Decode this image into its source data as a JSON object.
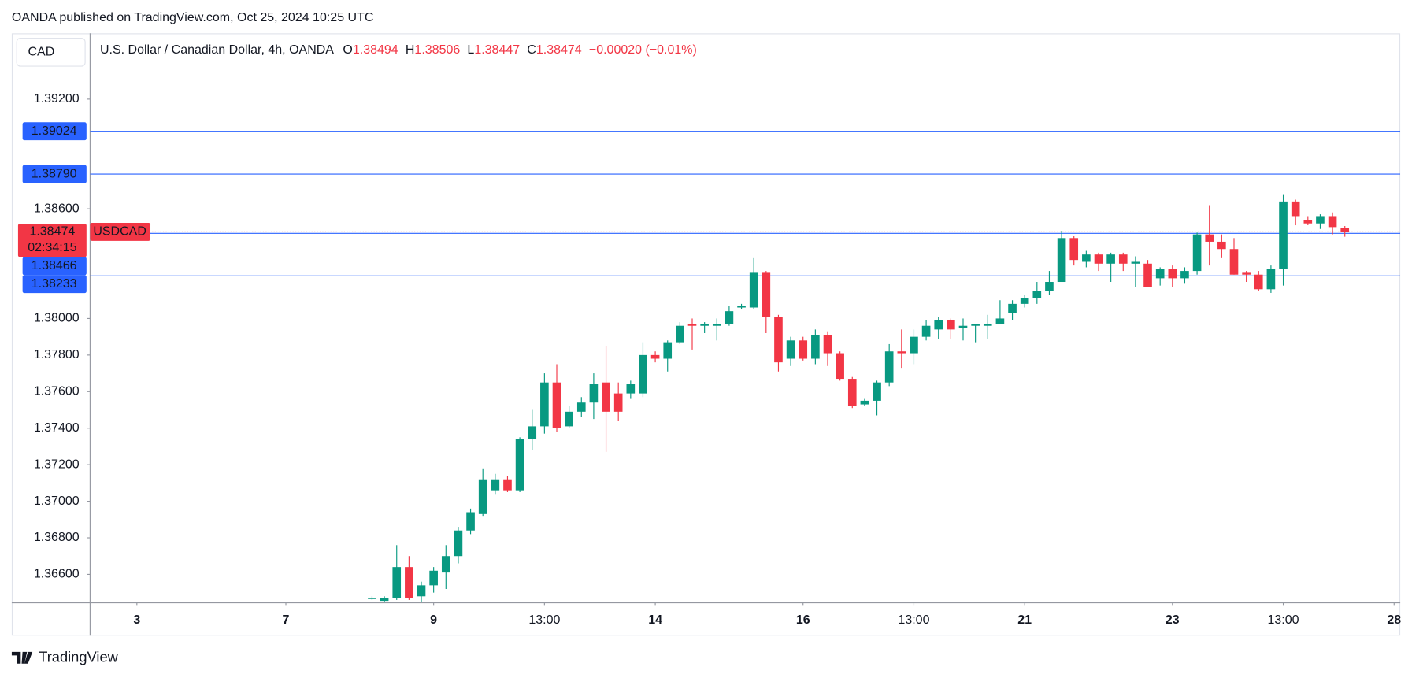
{
  "header": {
    "publisher": "OANDA published on TradingView.com, Oct 25, 2024 10:25 UTC",
    "currency": "CAD",
    "brand": "TradingView"
  },
  "chart_data": {
    "type": "candlestick",
    "title": "U.S. Dollar / Canadian Dollar, 4h, OANDA",
    "symbol": "USDCAD",
    "countdown": "02:34:15",
    "ohlc_prefixes": [
      "O",
      "H",
      "L",
      "C"
    ],
    "change": "−0.00020 (−0.01%)",
    "up_color": "#089981",
    "down_color": "#f23645",
    "open": [
      1.3647,
      1.36455,
      1.3647,
      1.3664,
      1.3648,
      1.3654,
      1.3661,
      1.367,
      1.3684,
      1.3693,
      1.3706,
      1.3712,
      1.3706,
      1.3734,
      1.3741,
      1.3765,
      1.3741,
      1.3749,
      1.3754,
      1.3765,
      1.3759,
      1.3759,
      1.3759,
      1.378,
      1.3778,
      1.3787,
      1.3797,
      1.3796,
      1.3796,
      1.3797,
      1.3806,
      1.3806,
      1.3825,
      1.3801,
      1.3778,
      1.3788,
      1.3778,
      1.3791,
      1.3781,
      1.3767,
      1.3753,
      1.3755,
      1.3765,
      1.3782,
      1.3781,
      1.379,
      1.3794,
      1.3799,
      1.3795,
      1.3796,
      1.3796,
      1.3797,
      1.3803,
      1.3808,
      1.3811,
      1.3815,
      1.382,
      1.3844,
      1.3831,
      1.3835,
      1.383,
      1.3835,
      1.383,
      1.383,
      1.3822,
      1.3827,
      1.3822,
      1.3826,
      1.3846,
      1.3842,
      1.3838,
      1.3825,
      1.3824,
      1.3816,
      1.3827,
      1.3864,
      1.3854,
      1.3852,
      1.3856,
      1.38494
    ],
    "high": [
      1.3648,
      1.3648,
      1.3676,
      1.367,
      1.3656,
      1.3664,
      1.3676,
      1.3686,
      1.3696,
      1.3718,
      1.3715,
      1.3714,
      1.3735,
      1.375,
      1.377,
      1.3775,
      1.3752,
      1.3757,
      1.377,
      1.3785,
      1.3765,
      1.3766,
      1.3787,
      1.3782,
      1.3788,
      1.3798,
      1.38,
      1.3798,
      1.38,
      1.3807,
      1.3808,
      1.3833,
      1.3826,
      1.3802,
      1.379,
      1.379,
      1.3794,
      1.3793,
      1.3782,
      1.3768,
      1.3756,
      1.3766,
      1.3786,
      1.3794,
      1.3794,
      1.3799,
      1.3801,
      1.38,
      1.38,
      1.3797,
      1.3802,
      1.381,
      1.381,
      1.3813,
      1.382,
      1.3826,
      1.3848,
      1.3845,
      1.3837,
      1.3836,
      1.3836,
      1.3836,
      1.3834,
      1.3832,
      1.3828,
      1.3829,
      1.3828,
      1.3847,
      1.3862,
      1.3846,
      1.3844,
      1.3826,
      1.3826,
      1.3829,
      1.3868,
      1.3865,
      1.3856,
      1.3857,
      1.3858,
      1.38506
    ],
    "low": [
      1.3646,
      1.3645,
      1.3646,
      1.3646,
      1.3645,
      1.365,
      1.3652,
      1.3666,
      1.3682,
      1.3692,
      1.3704,
      1.3705,
      1.3705,
      1.3728,
      1.3737,
      1.3738,
      1.374,
      1.3746,
      1.3745,
      1.3727,
      1.3744,
      1.3756,
      1.3757,
      1.3776,
      1.3771,
      1.3786,
      1.3783,
      1.3792,
      1.3788,
      1.3796,
      1.3805,
      1.3805,
      1.3792,
      1.3771,
      1.3774,
      1.3777,
      1.3775,
      1.3774,
      1.3766,
      1.3751,
      1.3752,
      1.3747,
      1.3763,
      1.3773,
      1.3775,
      1.3788,
      1.3789,
      1.3789,
      1.3788,
      1.3787,
      1.3789,
      1.3797,
      1.3799,
      1.3806,
      1.3808,
      1.3813,
      1.382,
      1.3829,
      1.3828,
      1.3826,
      1.382,
      1.3826,
      1.3817,
      1.3817,
      1.3818,
      1.3817,
      1.3819,
      1.3824,
      1.3829,
      1.3833,
      1.3824,
      1.382,
      1.3815,
      1.3814,
      1.3818,
      1.3851,
      1.3851,
      1.3849,
      1.3846,
      1.38447
    ],
    "close": [
      1.3647,
      1.3647,
      1.3664,
      1.3647,
      1.3654,
      1.3662,
      1.367,
      1.3684,
      1.3694,
      1.3712,
      1.3712,
      1.3706,
      1.3734,
      1.3741,
      1.3765,
      1.374,
      1.3749,
      1.3754,
      1.3764,
      1.3749,
      1.3749,
      1.3764,
      1.378,
      1.3778,
      1.3787,
      1.3796,
      1.3796,
      1.3797,
      1.3797,
      1.3804,
      1.3807,
      1.3825,
      1.3801,
      1.3776,
      1.3788,
      1.3778,
      1.3791,
      1.3781,
      1.3767,
      1.3752,
      1.3755,
      1.3765,
      1.3782,
      1.3781,
      1.379,
      1.3796,
      1.3799,
      1.3794,
      1.3796,
      1.3797,
      1.3797,
      1.38,
      1.3808,
      1.3811,
      1.3815,
      1.382,
      1.3844,
      1.3832,
      1.3835,
      1.383,
      1.3835,
      1.383,
      1.3831,
      1.3817,
      1.3827,
      1.3822,
      1.3826,
      1.3846,
      1.3842,
      1.3838,
      1.3824,
      1.3824,
      1.3816,
      1.3827,
      1.3864,
      1.3856,
      1.3852,
      1.3856,
      1.385,
      1.38474
    ],
    "levels": [
      {
        "value": 1.39024,
        "label": "1.39024",
        "color": "#2962ff"
      },
      {
        "value": 1.3879,
        "label": "1.38790",
        "color": "#2962ff"
      },
      {
        "value": 1.38466,
        "label": "1.38466",
        "color": "#2962ff"
      },
      {
        "value": 1.38233,
        "label": "1.38233",
        "color": "#2962ff"
      }
    ],
    "ylim": [
      1.36447,
      1.3956
    ],
    "yticks": [
      {
        "value": 1.392,
        "label": "1.39200"
      },
      {
        "value": 1.386,
        "label": "1.38600"
      },
      {
        "value": 1.38,
        "label": "1.38000"
      },
      {
        "value": 1.378,
        "label": "1.37800"
      },
      {
        "value": 1.376,
        "label": "1.37600"
      },
      {
        "value": 1.374,
        "label": "1.37400"
      },
      {
        "value": 1.372,
        "label": "1.37200"
      },
      {
        "value": 1.37,
        "label": "1.37000"
      },
      {
        "value": 1.368,
        "label": "1.36800"
      },
      {
        "value": 1.366,
        "label": "1.36600"
      }
    ],
    "xlim": [
      -22.9,
      83.5
    ],
    "xticks": [
      {
        "value": -19.1,
        "label": "3"
      },
      {
        "value": -7,
        "label": "7"
      },
      {
        "value": 5,
        "label": "9"
      },
      {
        "value": 14,
        "label": "13:00"
      },
      {
        "value": 23,
        "label": "14"
      },
      {
        "value": 35,
        "label": "16"
      },
      {
        "value": 44,
        "label": "13:00"
      },
      {
        "value": 53,
        "label": "21"
      },
      {
        "value": 65,
        "label": "23"
      },
      {
        "value": 74,
        "label": "13:00"
      },
      {
        "value": 83,
        "label": "28"
      }
    ]
  }
}
